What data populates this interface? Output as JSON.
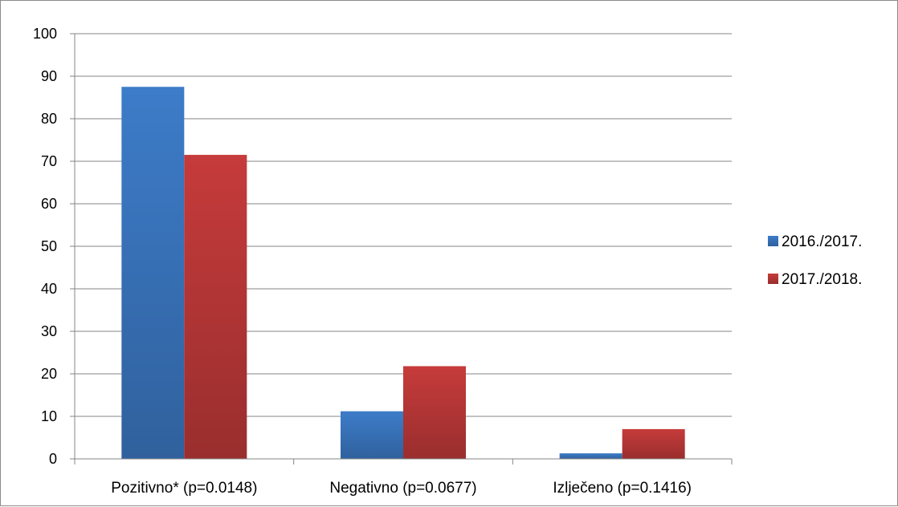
{
  "chart_data": {
    "type": "bar",
    "categories": [
      "Pozitivno* (p=0.0148)",
      "Negativno (p=0.0677)",
      "Izlječeno (p=0.1416)"
    ],
    "series": [
      {
        "name": "2016./2017.",
        "values": [
          87.5,
          11.2,
          1.3
        ],
        "color": "#3d7cc9"
      },
      {
        "name": "2017./2018.",
        "values": [
          71.5,
          21.8,
          7.0
        ],
        "color": "#c63b3b"
      }
    ],
    "ylim": [
      0,
      100
    ],
    "yticks": [
      0,
      10,
      20,
      30,
      40,
      50,
      60,
      70,
      80,
      90,
      100
    ],
    "grid": true,
    "legend": "right"
  }
}
